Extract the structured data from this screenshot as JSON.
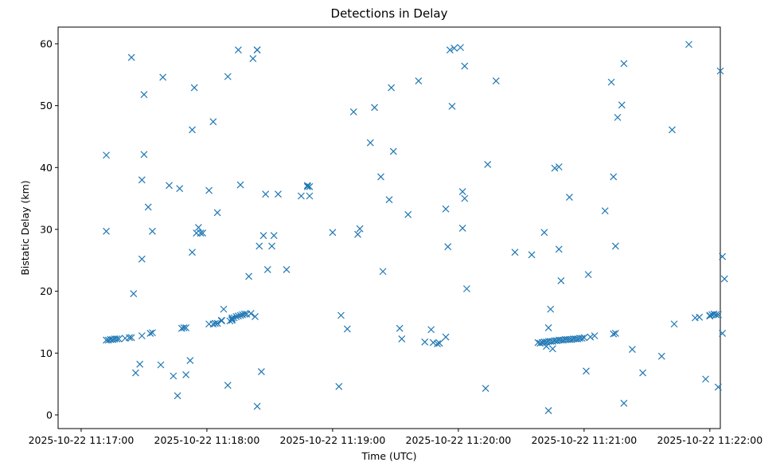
{
  "chart_data": {
    "type": "scatter",
    "title": "Detections in Delay",
    "xlabel": "Time (UTC)",
    "ylabel": "Bistatic Delay (km)",
    "x_is_time": true,
    "xlim": [
      "2025-10-22 11:16:49",
      "2025-10-22 11:22:05"
    ],
    "ylim": [
      -2.2,
      62.7
    ],
    "x_ticks": [
      "2025-10-22 11:17:00",
      "2025-10-22 11:18:00",
      "2025-10-22 11:19:00",
      "2025-10-22 11:20:00",
      "2025-10-22 11:21:00",
      "2025-10-22 11:22:00"
    ],
    "y_ticks": [
      0,
      10,
      20,
      30,
      40,
      50,
      60
    ],
    "grid": false,
    "legend": "none",
    "marker": "x",
    "color": "#1f77b4",
    "series": [
      {
        "x": [
          "2025-10-22 11:17:12",
          "2025-10-22 11:17:13",
          "2025-10-22 11:17:14",
          "2025-10-22 11:17:15",
          "2025-10-22 11:17:16",
          "2025-10-22 11:17:17",
          "2025-10-22 11:17:18",
          "2025-10-22 11:17:21",
          "2025-10-22 11:17:23",
          "2025-10-22 11:17:24",
          "2025-10-22 11:17:12",
          "2025-10-22 11:17:12",
          "2025-10-22 11:17:24",
          "2025-10-22 11:17:25",
          "2025-10-22 11:17:26",
          "2025-10-22 11:17:29",
          "2025-10-22 11:17:29",
          "2025-10-22 11:17:29",
          "2025-10-22 11:17:30",
          "2025-10-22 11:17:28",
          "2025-10-22 11:17:30",
          "2025-10-22 11:17:32",
          "2025-10-22 11:17:33",
          "2025-10-22 11:17:34",
          "2025-10-22 11:17:34",
          "2025-10-22 11:17:39",
          "2025-10-22 11:17:38",
          "2025-10-22 11:17:42",
          "2025-10-22 11:17:44",
          "2025-10-22 11:17:46",
          "2025-10-22 11:17:47",
          "2025-10-22 11:17:48",
          "2025-10-22 11:17:50",
          "2025-10-22 11:17:50",
          "2025-10-22 11:17:49",
          "2025-10-22 11:17:52",
          "2025-10-22 11:17:53",
          "2025-10-22 11:17:53",
          "2025-10-22 11:17:54",
          "2025-10-22 11:17:56",
          "2025-10-22 11:18:01",
          "2025-10-22 11:18:03",
          "2025-10-22 11:18:04",
          "2025-10-22 11:18:05",
          "2025-10-22 11:18:07",
          "2025-10-22 11:18:07",
          "2025-10-22 11:18:08",
          "2025-10-22 11:18:12",
          "2025-10-22 11:18:12",
          "2025-10-22 11:18:13",
          "2025-10-22 11:18:14",
          "2025-10-22 11:18:15",
          "2025-10-22 11:18:16",
          "2025-10-22 11:18:17",
          "2025-10-22 11:18:18",
          "2025-10-22 11:18:19",
          "2025-10-22 11:18:21",
          "2025-10-22 11:18:23",
          "2025-10-22 11:18:24",
          "2025-10-22 11:18:24",
          "2025-10-22 11:18:25",
          "2025-10-22 11:18:27",
          "2025-10-22 11:18:28",
          "2025-10-22 11:18:29",
          "2025-10-22 11:18:24",
          "2025-10-22 11:18:26",
          "2025-10-22 11:18:22",
          "2025-10-22 11:18:20",
          "2025-10-22 11:18:16",
          "2025-10-22 11:18:03",
          "2025-10-22 11:18:01",
          "2025-10-22 11:18:05",
          "2025-10-22 11:18:10",
          "2025-10-22 11:18:10",
          "2025-10-22 11:18:11",
          "2025-10-22 11:18:12",
          "2025-10-22 11:17:55",
          "2025-10-22 11:17:58",
          "2025-10-22 11:17:57",
          "2025-10-22 11:18:15",
          "2025-10-22 11:18:31",
          "2025-10-22 11:18:32",
          "2025-10-22 11:18:34",
          "2025-10-22 11:18:38",
          "2025-10-22 11:18:45",
          "2025-10-22 11:18:48",
          "2025-10-22 11:18:49",
          "2025-10-22 11:18:49",
          "2025-10-22 11:18:48",
          "2025-10-22 11:19:00",
          "2025-10-22 11:19:04",
          "2025-10-22 11:19:03",
          "2025-10-22 11:19:07",
          "2025-10-22 11:19:10",
          "2025-10-22 11:19:12",
          "2025-10-22 11:19:13",
          "2025-10-22 11:19:18",
          "2025-10-22 11:19:20",
          "2025-10-22 11:19:23",
          "2025-10-22 11:19:24",
          "2025-10-22 11:19:27",
          "2025-10-22 11:19:28",
          "2025-10-22 11:19:29",
          "2025-10-22 11:19:32",
          "2025-10-22 11:19:33",
          "2025-10-22 11:19:36",
          "2025-10-22 11:19:41",
          "2025-10-22 11:19:44",
          "2025-10-22 11:19:47",
          "2025-10-22 11:19:48",
          "2025-10-22 11:19:50",
          "2025-10-22 11:19:51",
          "2025-10-22 11:19:54",
          "2025-10-22 11:19:54",
          "2025-10-22 11:19:55",
          "2025-10-22 11:19:56",
          "2025-10-22 11:19:57",
          "2025-10-22 11:19:58",
          "2025-10-22 11:20:01",
          "2025-10-22 11:20:02",
          "2025-10-22 11:20:02",
          "2025-10-22 11:20:03",
          "2025-10-22 11:20:03",
          "2025-10-22 11:20:04",
          "2025-10-22 11:20:13",
          "2025-10-22 11:20:14",
          "2025-10-22 11:20:18",
          "2025-10-22 11:20:27",
          "2025-10-22 11:20:35",
          "2025-10-22 11:20:38",
          "2025-10-22 11:20:39",
          "2025-10-22 11:20:40",
          "2025-10-22 11:20:41",
          "2025-10-22 11:20:42",
          "2025-10-22 11:20:43",
          "2025-10-22 11:20:44",
          "2025-10-22 11:20:45",
          "2025-10-22 11:20:46",
          "2025-10-22 11:20:47",
          "2025-10-22 11:20:48",
          "2025-10-22 11:20:49",
          "2025-10-22 11:20:50",
          "2025-10-22 11:20:51",
          "2025-10-22 11:20:52",
          "2025-10-22 11:20:53",
          "2025-10-22 11:20:54",
          "2025-10-22 11:20:55",
          "2025-10-22 11:20:56",
          "2025-10-22 11:20:57",
          "2025-10-22 11:20:58",
          "2025-10-22 11:20:59",
          "2025-10-22 11:21:00",
          "2025-10-22 11:21:03",
          "2025-10-22 11:21:05",
          "2025-10-22 11:21:14",
          "2025-10-22 11:21:15",
          "2025-10-22 11:20:42",
          "2025-10-22 11:20:41",
          "2025-10-22 11:20:43",
          "2025-10-22 11:20:44",
          "2025-10-22 11:20:45",
          "2025-10-22 11:20:46",
          "2025-10-22 11:20:48",
          "2025-10-22 11:20:49",
          "2025-10-22 11:20:48",
          "2025-10-22 11:20:43",
          "2025-10-22 11:20:53",
          "2025-10-22 11:21:02",
          "2025-10-22 11:21:01",
          "2025-10-22 11:21:10",
          "2025-10-22 11:21:13",
          "2025-10-22 11:21:14",
          "2025-10-22 11:21:15",
          "2025-10-22 11:21:16",
          "2025-10-22 11:21:18",
          "2025-10-22 11:21:19",
          "2025-10-22 11:21:19",
          "2025-10-22 11:21:23",
          "2025-10-22 11:21:28",
          "2025-10-22 11:21:37",
          "2025-10-22 11:21:42",
          "2025-10-22 11:21:43",
          "2025-10-22 11:21:50",
          "2025-10-22 11:21:53",
          "2025-10-22 11:21:55",
          "2025-10-22 11:22:00",
          "2025-10-22 11:22:00",
          "2025-10-22 11:22:01",
          "2025-10-22 11:22:02",
          "2025-10-22 11:22:03",
          "2025-10-22 11:22:04",
          "2025-10-22 11:21:58",
          "2025-10-22 11:22:04",
          "2025-10-22 11:22:05",
          "2025-10-22 11:22:06",
          "2025-10-22 11:22:07",
          "2025-10-22 11:22:06"
        ],
        "y": [
          12.1,
          12.1,
          12.2,
          12.2,
          12.3,
          12.3,
          12.3,
          12.4,
          12.5,
          12.5,
          42.0,
          29.7,
          57.8,
          19.6,
          6.8,
          12.8,
          38.0,
          25.2,
          42.1,
          8.2,
          51.8,
          33.6,
          13.2,
          13.3,
          29.7,
          54.6,
          8.1,
          37.1,
          6.3,
          3.1,
          36.6,
          14.0,
          14.1,
          6.5,
          14.1,
          8.8,
          26.3,
          46.1,
          52.9,
          30.3,
          14.7,
          14.7,
          14.8,
          14.8,
          15.2,
          15.3,
          17.1,
          15.5,
          15.7,
          15.7,
          15.9,
          16.0,
          16.1,
          16.2,
          16.3,
          16.3,
          16.4,
          15.9,
          59.0,
          59.0,
          27.3,
          29.0,
          35.7,
          23.5,
          1.4,
          7.0,
          57.6,
          22.4,
          37.2,
          47.4,
          36.3,
          32.7,
          54.7,
          4.8,
          15.2,
          15.3,
          29.4,
          29.4,
          29.4,
          59.0,
          27.3,
          29.0,
          35.7,
          23.5,
          35.4,
          36.9,
          36.9,
          35.4,
          37.1,
          29.5,
          16.1,
          4.6,
          13.9,
          49.0,
          29.2,
          30.1,
          44.0,
          49.7,
          38.5,
          23.2,
          34.8,
          52.9,
          42.6,
          14.0,
          12.3,
          32.4,
          54.0,
          11.8,
          13.8,
          11.7,
          11.5,
          11.6,
          12.6,
          33.3,
          27.2,
          59.0,
          49.9,
          59.3,
          59.4,
          36.1,
          30.2,
          35.0,
          56.4,
          20.4,
          4.3,
          40.5,
          54.0,
          26.3,
          25.9,
          11.7,
          11.6,
          11.7,
          11.8,
          11.8,
          11.9,
          11.9,
          11.9,
          12.0,
          12.0,
          12.1,
          12.1,
          12.1,
          12.2,
          12.2,
          12.2,
          12.2,
          12.3,
          12.3,
          12.3,
          12.4,
          12.4,
          12.5,
          12.6,
          12.8,
          13.1,
          13.2,
          11.1,
          29.5,
          14.1,
          17.1,
          10.7,
          39.9,
          26.8,
          21.7,
          40.1,
          0.7,
          35.2,
          22.7,
          7.1,
          33.0,
          53.8,
          38.5,
          27.3,
          48.1,
          50.1,
          56.8,
          1.9,
          10.6,
          6.8,
          9.5,
          46.1,
          14.7,
          59.9,
          15.7,
          15.8,
          16.0,
          16.1,
          16.2,
          16.3,
          16.2,
          16.2,
          5.8,
          4.5,
          55.6,
          25.6,
          22.0,
          13.2
        ]
      }
    ]
  }
}
